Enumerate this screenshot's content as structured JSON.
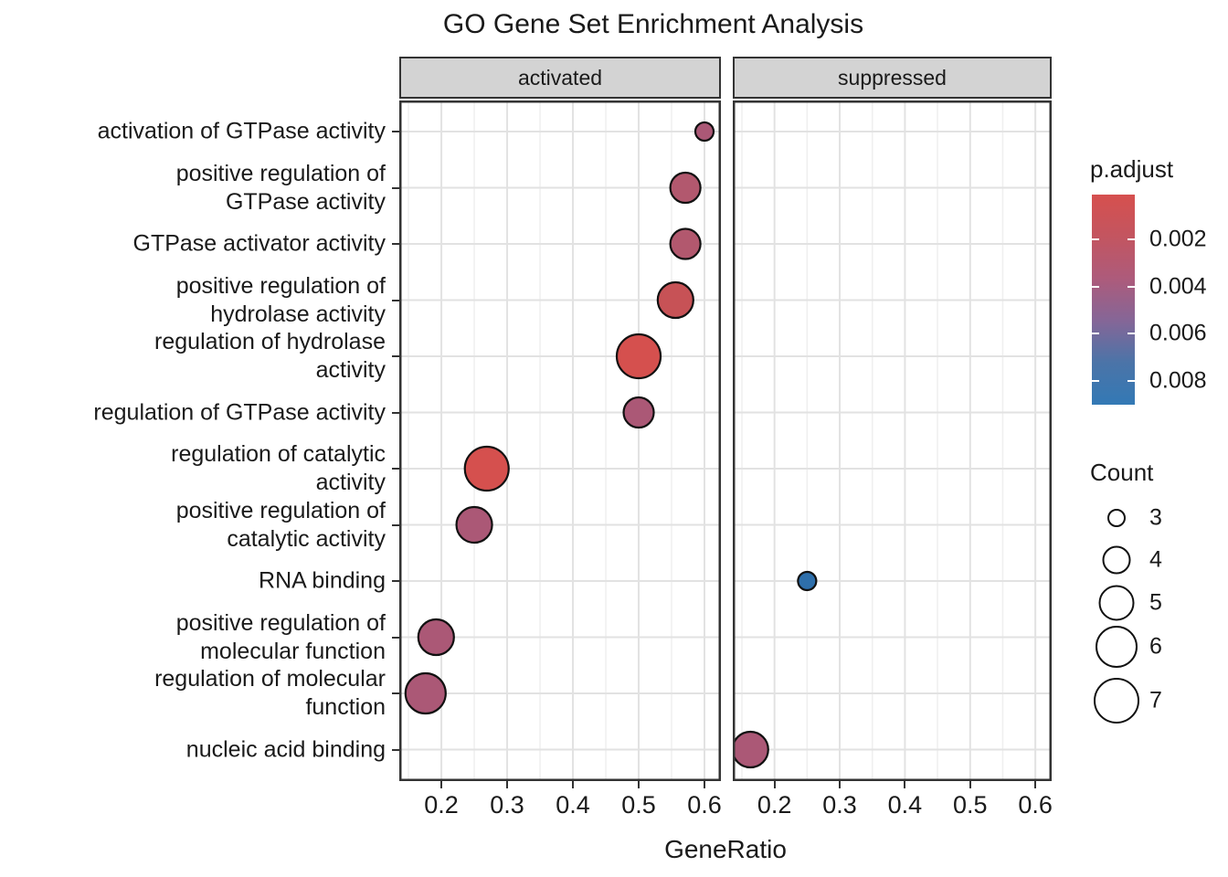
{
  "chart_data": {
    "type": "scatter",
    "title": "GO Gene Set Enrichment Analysis",
    "xlabel": "GeneRatio",
    "facets": [
      "activated",
      "suppressed"
    ],
    "x_ticks": [
      0.2,
      0.3,
      0.4,
      0.5,
      0.6
    ],
    "x_minor_ticks": [
      0.15,
      0.25,
      0.35,
      0.45,
      0.55
    ],
    "xlim": [
      0.136,
      0.625
    ],
    "grid": true,
    "categories": [
      {
        "name": "activation of GTPase activity",
        "lines": [
          "activation of GTPase activity"
        ]
      },
      {
        "name": "positive regulation of GTPase activity",
        "lines": [
          "positive regulation of",
          "GTPase activity"
        ]
      },
      {
        "name": "GTPase activator activity",
        "lines": [
          "GTPase activator activity"
        ]
      },
      {
        "name": "positive regulation of hydrolase activity",
        "lines": [
          "positive regulation of",
          "hydrolase activity"
        ]
      },
      {
        "name": "regulation of hydrolase activity",
        "lines": [
          "regulation of hydrolase",
          "activity"
        ]
      },
      {
        "name": "regulation of GTPase activity",
        "lines": [
          "regulation of GTPase activity"
        ]
      },
      {
        "name": "regulation of catalytic activity",
        "lines": [
          "regulation of catalytic",
          "activity"
        ]
      },
      {
        "name": "positive regulation of catalytic activity",
        "lines": [
          "positive regulation of",
          "catalytic activity"
        ]
      },
      {
        "name": "RNA binding",
        "lines": [
          "RNA binding"
        ]
      },
      {
        "name": "positive regulation of molecular function",
        "lines": [
          "positive regulation of",
          "molecular function"
        ]
      },
      {
        "name": "regulation of molecular function",
        "lines": [
          "regulation of molecular",
          "function"
        ]
      },
      {
        "name": "nucleic acid binding",
        "lines": [
          "nucleic acid binding"
        ]
      }
    ],
    "points": [
      {
        "term": "activation of GTPase activity",
        "facet": "activated",
        "gene_ratio": 0.6,
        "count": 3,
        "p_adjust": 0.0042,
        "color": "#ab5876"
      },
      {
        "term": "positive regulation of GTPase activity",
        "facet": "activated",
        "gene_ratio": 0.571,
        "count": 4,
        "p_adjust": 0.0035,
        "color": "#b2586e"
      },
      {
        "term": "GTPase activator activity",
        "facet": "activated",
        "gene_ratio": 0.571,
        "count": 4,
        "p_adjust": 0.0035,
        "color": "#b2586e"
      },
      {
        "term": "positive regulation of hydrolase activity",
        "facet": "activated",
        "gene_ratio": 0.556,
        "count": 5,
        "p_adjust": 0.0022,
        "color": "#c75256"
      },
      {
        "term": "regulation of hydrolase activity",
        "facet": "activated",
        "gene_ratio": 0.5,
        "count": 7,
        "p_adjust": 0.0012,
        "color": "#d5504e"
      },
      {
        "term": "regulation of GTPase activity",
        "facet": "activated",
        "gene_ratio": 0.5,
        "count": 4,
        "p_adjust": 0.0042,
        "color": "#ab5876"
      },
      {
        "term": "regulation of catalytic activity",
        "facet": "activated",
        "gene_ratio": 0.269,
        "count": 7,
        "p_adjust": 0.0012,
        "color": "#d5504e"
      },
      {
        "term": "positive regulation of catalytic activity",
        "facet": "activated",
        "gene_ratio": 0.25,
        "count": 5,
        "p_adjust": 0.004,
        "color": "#ab5876"
      },
      {
        "term": "RNA binding",
        "facet": "suppressed",
        "gene_ratio": 0.25,
        "count": 3,
        "p_adjust": 0.009,
        "color": "#2e6fab"
      },
      {
        "term": "positive regulation of molecular function",
        "facet": "activated",
        "gene_ratio": 0.192,
        "count": 5,
        "p_adjust": 0.0042,
        "color": "#ab5876"
      },
      {
        "term": "regulation of molecular function",
        "facet": "activated",
        "gene_ratio": 0.176,
        "count": 6,
        "p_adjust": 0.0045,
        "color": "#ab5876"
      },
      {
        "term": "nucleic acid binding",
        "facet": "suppressed",
        "gene_ratio": 0.163,
        "count": 5,
        "p_adjust": 0.0045,
        "color": "#ab5876"
      }
    ],
    "legend": {
      "p_adjust": {
        "title": "p.adjust",
        "tick_values": [
          0.002,
          0.004,
          0.006,
          0.008
        ],
        "range": [
          0.0001,
          0.009
        ],
        "gradient": [
          "#d6504e",
          "#c35560",
          "#ad5b7b",
          "#856697",
          "#4b74a8",
          "#3379b5"
        ]
      },
      "count": {
        "title": "Count",
        "values": [
          3,
          4,
          5,
          6,
          7
        ],
        "radii": [
          10,
          15.5,
          19.5,
          23,
          25
        ]
      }
    },
    "style": {
      "grid_major_color": "#e2e2e2",
      "grid_minor_color": "#efefef",
      "panel_border_color": "#333333",
      "strip_bg_color": "#d3d3d3",
      "point_stroke_color": "#111111"
    }
  }
}
